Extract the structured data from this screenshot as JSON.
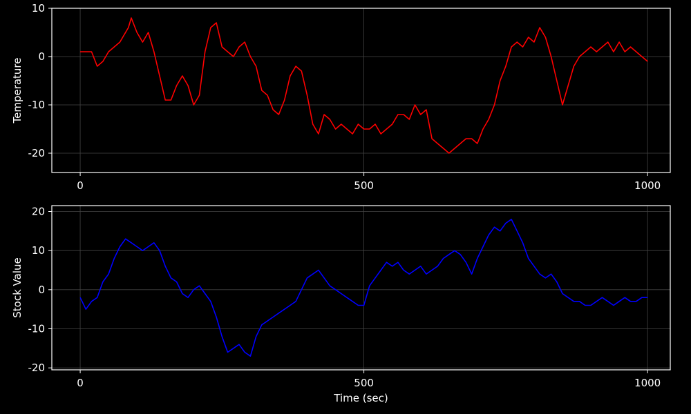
{
  "figure": {
    "background": "#000000",
    "axes_color": "#ffffff",
    "grid_color": "#444444"
  },
  "chart_data": [
    {
      "type": "line",
      "title": "",
      "xlabel": "",
      "ylabel": "Temperature",
      "xlim": [
        -50,
        1040
      ],
      "ylim": [
        -24,
        10
      ],
      "xticks": [
        0,
        500,
        1000
      ],
      "yticks": [
        10,
        0,
        -10,
        -20
      ],
      "grid": true,
      "series": [
        {
          "color": "#ff0000",
          "x": [
            0,
            10,
            20,
            30,
            40,
            50,
            60,
            70,
            80,
            85,
            90,
            100,
            110,
            120,
            130,
            140,
            150,
            160,
            170,
            180,
            190,
            200,
            210,
            220,
            230,
            240,
            250,
            260,
            270,
            280,
            290,
            300,
            310,
            320,
            330,
            340,
            350,
            360,
            370,
            380,
            390,
            400,
            410,
            420,
            430,
            440,
            450,
            460,
            470,
            480,
            490,
            500,
            510,
            520,
            530,
            540,
            550,
            560,
            570,
            580,
            590,
            600,
            610,
            620,
            630,
            640,
            650,
            660,
            670,
            680,
            690,
            700,
            710,
            720,
            730,
            740,
            750,
            760,
            770,
            780,
            790,
            800,
            810,
            820,
            830,
            840,
            850,
            860,
            870,
            880,
            890,
            900,
            910,
            920,
            930,
            940,
            950,
            960,
            970,
            980,
            990,
            1000
          ],
          "y": [
            1,
            1,
            1,
            -2,
            -1,
            1,
            2,
            3,
            5,
            6,
            8,
            5,
            3,
            5,
            1,
            -4,
            -9,
            -9,
            -6,
            -4,
            -6,
            -10,
            -8,
            1,
            6,
            7,
            2,
            1,
            0,
            2,
            3,
            0,
            -2,
            -7,
            -8,
            -11,
            -12,
            -9,
            -4,
            -2,
            -3,
            -8,
            -14,
            -16,
            -12,
            -13,
            -15,
            -14,
            -15,
            -16,
            -14,
            -15,
            -15,
            -14,
            -16,
            -15,
            -14,
            -12,
            -12,
            -13,
            -10,
            -12,
            -11,
            -17,
            -18,
            -19,
            -20,
            -19,
            -18,
            -17,
            -17,
            -18,
            -15,
            -13,
            -10,
            -5,
            -2,
            2,
            3,
            2,
            4,
            3,
            6,
            4,
            0,
            -5,
            -10,
            -6,
            -2,
            0,
            1,
            2,
            1,
            2,
            3,
            1,
            3,
            1,
            2,
            1,
            0,
            -1
          ]
        }
      ]
    },
    {
      "type": "line",
      "title": "",
      "xlabel": "Time (sec)",
      "ylabel": "Stock Value",
      "xlim": [
        -50,
        1040
      ],
      "ylim": [
        -20.5,
        21.5
      ],
      "xticks": [
        0,
        500,
        1000
      ],
      "yticks": [
        20,
        10,
        0,
        -10,
        -20
      ],
      "grid": true,
      "series": [
        {
          "color": "#0000ff",
          "x": [
            0,
            10,
            20,
            30,
            40,
            50,
            60,
            70,
            80,
            90,
            100,
            110,
            120,
            130,
            140,
            150,
            160,
            170,
            180,
            190,
            200,
            210,
            220,
            230,
            240,
            250,
            260,
            270,
            280,
            290,
            300,
            310,
            320,
            330,
            340,
            350,
            360,
            370,
            380,
            390,
            400,
            410,
            420,
            430,
            440,
            450,
            460,
            470,
            480,
            490,
            500,
            510,
            520,
            530,
            540,
            550,
            560,
            570,
            580,
            590,
            600,
            610,
            620,
            630,
            640,
            650,
            660,
            670,
            680,
            690,
            700,
            710,
            720,
            730,
            740,
            750,
            760,
            770,
            780,
            790,
            800,
            810,
            820,
            830,
            840,
            850,
            860,
            870,
            880,
            890,
            900,
            910,
            920,
            930,
            940,
            950,
            960,
            970,
            980,
            990,
            1000
          ],
          "y": [
            -2,
            -5,
            -3,
            -2,
            2,
            4,
            8,
            11,
            13,
            12,
            11,
            10,
            11,
            12,
            10,
            6,
            3,
            2,
            -1,
            -2,
            0,
            1,
            -1,
            -3,
            -7,
            -12,
            -16,
            -15,
            -14,
            -16,
            -17,
            -12,
            -9,
            -8,
            -7,
            -6,
            -5,
            -4,
            -3,
            0,
            3,
            4,
            5,
            3,
            1,
            0,
            -1,
            -2,
            -3,
            -4,
            -4,
            1,
            3,
            5,
            7,
            6,
            7,
            5,
            4,
            5,
            6,
            4,
            5,
            6,
            8,
            9,
            10,
            9,
            7,
            4,
            8,
            11,
            14,
            16,
            15,
            17,
            18,
            15,
            12,
            8,
            6,
            4,
            3,
            4,
            2,
            -1,
            -2,
            -3,
            -3,
            -4,
            -4,
            -3,
            -2,
            -3,
            -4,
            -3,
            -2,
            -3,
            -3,
            -2,
            -2
          ]
        }
      ]
    }
  ]
}
